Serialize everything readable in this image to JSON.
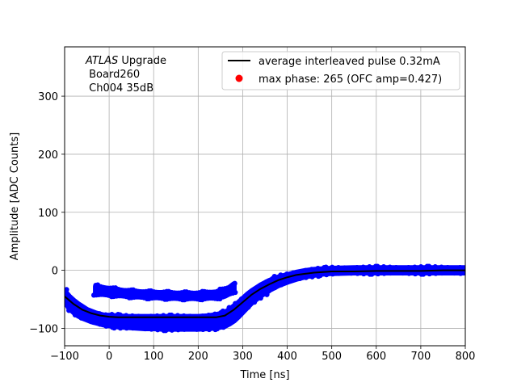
{
  "chart_data": {
    "type": "scatter",
    "xlabel": "Time [ns]",
    "ylabel": "Amplitude [ADC Counts]",
    "xlim": [
      -100,
      800
    ],
    "ylim": [
      -130,
      385
    ],
    "xticks": [
      -100,
      0,
      100,
      200,
      300,
      400,
      500,
      600,
      700,
      800
    ],
    "yticks": [
      -100,
      0,
      100,
      200,
      300
    ],
    "grid": true,
    "legend_position": "top-right",
    "annotation": {
      "italic": "ATLAS",
      "rest": " Upgrade",
      "line2": " Board260",
      "line3": " Ch004 35dB"
    },
    "series": [
      {
        "name": "average interleaved pulse 0.32mA",
        "kind": "line",
        "color": "#000000",
        "x": [
          -100,
          -80,
          -60,
          -40,
          -20,
          0,
          20,
          40,
          60,
          80,
          100,
          120,
          140,
          160,
          180,
          200,
          220,
          240,
          260,
          280,
          300,
          320,
          340,
          360,
          380,
          400,
          420,
          440,
          460,
          480,
          500,
          550,
          600,
          650,
          700,
          750,
          800
        ],
        "y": [
          -45,
          -58,
          -68,
          -74,
          -78,
          -80,
          -81,
          -81,
          -81,
          -81,
          -81,
          -81,
          -81,
          -81,
          -81,
          -81,
          -81,
          -81,
          -78,
          -68,
          -55,
          -42,
          -32,
          -24,
          -17,
          -12,
          -8,
          -6,
          -4,
          -3,
          -2,
          -2,
          -1,
          -1,
          -1,
          0,
          0
        ]
      },
      {
        "name": "",
        "kind": "dots",
        "color": "#000000",
        "x": [
          0,
          10,
          20,
          30,
          40,
          50,
          60,
          70,
          80,
          90,
          100,
          110,
          120,
          130,
          140,
          150,
          160,
          170,
          180,
          190,
          200,
          210,
          220,
          230,
          240,
          250
        ],
        "y": [
          -80,
          -81,
          -80,
          -79,
          -80,
          -78,
          -80,
          -79,
          -81,
          -80,
          -78,
          -80,
          -79,
          -80,
          -78,
          -79,
          -80,
          -79,
          -77,
          -79,
          -80,
          -78,
          -79,
          -80,
          -78,
          -79
        ]
      },
      {
        "name": "",
        "kind": "blue-band",
        "color": "#0000ff",
        "x": [
          -100,
          -90,
          -80,
          -70,
          -60,
          -50,
          -40,
          -30,
          -20,
          -10,
          0,
          20,
          40,
          60,
          80,
          100,
          120,
          140,
          160,
          180,
          200,
          220,
          240,
          260,
          270,
          280,
          290,
          300,
          310,
          320,
          340,
          360,
          380,
          400,
          420,
          440,
          460,
          480,
          500,
          550,
          600,
          650,
          700,
          750,
          800
        ],
        "y_min": [
          -52,
          -65,
          -72,
          -78,
          -82,
          -85,
          -88,
          -90,
          -92,
          -94,
          -95,
          -97,
          -98,
          -99,
          -100,
          -100,
          -101,
          -101,
          -101,
          -101,
          -101,
          -100,
          -99,
          -96,
          -92,
          -87,
          -80,
          -72,
          -64,
          -56,
          -44,
          -34,
          -26,
          -20,
          -15,
          -11,
          -8,
          -6,
          -5,
          -4,
          -4,
          -4,
          -4,
          -4,
          -4
        ],
        "y_max": [
          -36,
          -45,
          -52,
          -58,
          -63,
          -68,
          -71,
          -74,
          -76,
          -78,
          -78,
          -79,
          -80,
          -80,
          -80,
          -80,
          -80,
          -80,
          -80,
          -80,
          -80,
          -79,
          -77,
          -73,
          -68,
          -62,
          -56,
          -49,
          -42,
          -36,
          -26,
          -18,
          -12,
          -8,
          -4,
          -1,
          1,
          2,
          3,
          4,
          4,
          4,
          4,
          4,
          4
        ]
      },
      {
        "name": "",
        "kind": "blue-band",
        "color": "#0000ff",
        "x": [
          -30,
          0,
          40,
          80,
          120,
          160,
          200,
          240,
          260,
          270,
          280
        ],
        "y_min": [
          -40,
          -42,
          -44,
          -46,
          -47,
          -48,
          -48,
          -47,
          -44,
          -40,
          -36
        ],
        "y_max": [
          -28,
          -32,
          -36,
          -38,
          -39,
          -40,
          -40,
          -38,
          -34,
          -30,
          -24
        ]
      },
      {
        "name": "max phase: 265 (OFC amp=0.427)",
        "kind": "marker",
        "color": "#ff0000",
        "x": [],
        "y": []
      }
    ]
  }
}
